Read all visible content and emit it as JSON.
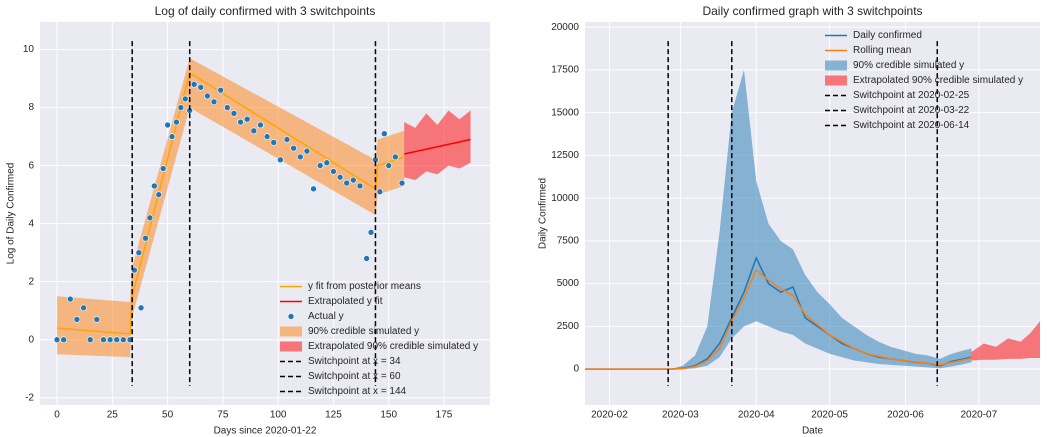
{
  "chart_data": [
    {
      "type": "line",
      "title": "Log of daily confirmed with 3 switchpoints",
      "xlabel": "Days since 2020-01-22",
      "ylabel": "Log of Daily Confirmed",
      "xlim": [
        -7.7,
        195.8
      ],
      "ylim": [
        -2.25,
        10.95
      ],
      "xticks": [
        0,
        25,
        50,
        75,
        100,
        125,
        150,
        175
      ],
      "yticks": [
        -2,
        0,
        2,
        4,
        6,
        8,
        10
      ],
      "grid": true,
      "legend": "lower right",
      "series": [
        {
          "name": "y fit from posterior means",
          "type": "line",
          "color": "orange",
          "x": [
            0,
            33,
            34,
            60,
            144,
            145,
            157
          ],
          "values": [
            0.4,
            0.2,
            1.5,
            9.2,
            5.2,
            6.0,
            6.3
          ]
        },
        {
          "name": "Extrapolated y fit",
          "type": "line",
          "color": "red",
          "x": [
            157,
            187
          ],
          "values": [
            6.4,
            6.9
          ]
        },
        {
          "name": "Actual y",
          "type": "scatter",
          "color": "#1f77b4",
          "x": [
            0,
            3,
            6,
            9,
            12,
            15,
            18,
            21,
            24,
            27,
            30,
            33,
            35,
            37,
            38,
            40,
            42,
            44,
            46,
            48,
            50,
            52,
            54,
            56,
            58,
            60,
            62,
            65,
            68,
            71,
            74,
            77,
            80,
            83,
            86,
            89,
            92,
            95,
            98,
            101,
            104,
            107,
            110,
            113,
            116,
            119,
            122,
            125,
            128,
            131,
            134,
            137,
            140,
            142,
            144,
            146,
            148,
            150,
            153,
            156
          ],
          "values": [
            0,
            0,
            1.4,
            0.7,
            1.1,
            0,
            0.7,
            0,
            0,
            0,
            0,
            0,
            2.4,
            3.0,
            1.1,
            3.5,
            4.2,
            5.3,
            5.0,
            5.9,
            7.4,
            7.0,
            7.5,
            8.0,
            8.3,
            7.9,
            8.8,
            8.7,
            8.4,
            8.2,
            8.6,
            8.0,
            7.8,
            7.5,
            7.6,
            7.2,
            7.4,
            7.0,
            6.8,
            6.2,
            6.9,
            6.6,
            6.3,
            6.5,
            5.2,
            6.0,
            6.1,
            5.8,
            5.6,
            5.4,
            5.5,
            5.3,
            2.8,
            3.7,
            6.2,
            5.1,
            7.1,
            6.0,
            6.3,
            5.4
          ]
        },
        {
          "name": "90% credible simulated y",
          "type": "band",
          "color": "#ff7f0e",
          "alpha": 0.5,
          "x": [
            0,
            33,
            34,
            60,
            144,
            145,
            157
          ],
          "lower": [
            -0.5,
            -0.6,
            0.8,
            8.0,
            4.3,
            5.0,
            5.3
          ],
          "upper": [
            1.5,
            1.3,
            2.5,
            9.7,
            6.2,
            6.9,
            7.2
          ]
        },
        {
          "name": "Extrapolated 90% credible simulated y",
          "type": "band",
          "color": "#ff0000",
          "alpha": 0.5,
          "x": [
            157,
            162,
            167,
            172,
            177,
            182,
            187
          ],
          "lower": [
            5.6,
            5.5,
            5.8,
            5.7,
            6.0,
            5.9,
            6.1
          ],
          "upper": [
            7.5,
            7.3,
            7.8,
            7.4,
            7.9,
            7.6,
            7.9
          ]
        }
      ],
      "switchpoints": [
        {
          "name": "Switchpoint at x = 34",
          "x": 34
        },
        {
          "name": "Switchpoint at x = 60",
          "x": 60
        },
        {
          "name": "Switchpoint at x = 144",
          "x": 144
        }
      ]
    },
    {
      "type": "line",
      "title": "Daily confirmed graph with 3 switchpoints",
      "xlabel": "Date",
      "ylabel": "Daily Confirmed",
      "xlim": [
        "2020-01-22",
        "2020-07-26"
      ],
      "ylim": [
        -2100,
        20300
      ],
      "xticks": [
        {
          "value": "2020-02-01",
          "label": "2020-02"
        },
        {
          "value": "2020-03-01",
          "label": "2020-03"
        },
        {
          "value": "2020-04-01",
          "label": "2020-04"
        },
        {
          "value": "2020-05-01",
          "label": "2020-05"
        },
        {
          "value": "2020-06-01",
          "label": "2020-06"
        },
        {
          "value": "2020-07-01",
          "label": "2020-07"
        }
      ],
      "yticks": [
        0,
        2500,
        5000,
        7500,
        10000,
        12500,
        15000,
        17500,
        20000
      ],
      "grid": true,
      "legend": "upper right",
      "series": [
        {
          "name": "Daily confirmed",
          "type": "line",
          "color": "#1f77b4",
          "x": [
            "2020-01-22",
            "2020-01-27",
            "2020-02-01",
            "2020-02-06",
            "2020-02-11",
            "2020-02-16",
            "2020-02-21",
            "2020-02-26",
            "2020-03-02",
            "2020-03-07",
            "2020-03-12",
            "2020-03-17",
            "2020-03-22",
            "2020-03-27",
            "2020-04-01",
            "2020-04-06",
            "2020-04-11",
            "2020-04-16",
            "2020-04-21",
            "2020-04-26",
            "2020-05-01",
            "2020-05-06",
            "2020-05-11",
            "2020-05-16",
            "2020-05-21",
            "2020-05-26",
            "2020-05-31",
            "2020-06-05",
            "2020-06-10",
            "2020-06-15",
            "2020-06-20",
            "2020-06-25",
            "2020-06-28"
          ],
          "values": [
            0,
            0,
            0,
            0,
            0,
            0,
            0,
            0,
            50,
            200,
            600,
            1500,
            3000,
            4500,
            6500,
            5000,
            4500,
            4800,
            3000,
            2500,
            2000,
            1500,
            1200,
            900,
            700,
            600,
            500,
            400,
            350,
            200,
            450,
            600,
            700
          ]
        },
        {
          "name": "Rolling mean",
          "type": "line",
          "color": "#ff7f0e",
          "x": [
            "2020-01-22",
            "2020-01-27",
            "2020-02-01",
            "2020-02-06",
            "2020-02-11",
            "2020-02-16",
            "2020-02-21",
            "2020-02-26",
            "2020-03-02",
            "2020-03-07",
            "2020-03-12",
            "2020-03-17",
            "2020-03-22",
            "2020-03-27",
            "2020-04-01",
            "2020-04-06",
            "2020-04-11",
            "2020-04-16",
            "2020-04-21",
            "2020-04-26",
            "2020-05-01",
            "2020-05-06",
            "2020-05-11",
            "2020-05-16",
            "2020-05-21",
            "2020-05-26",
            "2020-05-31",
            "2020-06-05",
            "2020-06-10",
            "2020-06-15",
            "2020-06-20",
            "2020-06-25",
            "2020-06-28"
          ],
          "values": [
            0,
            0,
            0,
            0,
            0,
            0,
            0,
            0,
            30,
            150,
            500,
            1200,
            2800,
            4200,
            5800,
            5200,
            4700,
            4300,
            3200,
            2600,
            2000,
            1600,
            1200,
            900,
            750,
            600,
            500,
            420,
            350,
            250,
            400,
            550,
            650
          ]
        },
        {
          "name": "90% credible simulated y",
          "type": "band",
          "color": "#1f77b4",
          "alpha": 0.5,
          "x": [
            "2020-01-22",
            "2020-01-27",
            "2020-02-01",
            "2020-02-06",
            "2020-02-11",
            "2020-02-16",
            "2020-02-21",
            "2020-02-26",
            "2020-03-02",
            "2020-03-07",
            "2020-03-12",
            "2020-03-17",
            "2020-03-22",
            "2020-03-27",
            "2020-04-01",
            "2020-04-06",
            "2020-04-11",
            "2020-04-16",
            "2020-04-21",
            "2020-04-26",
            "2020-05-01",
            "2020-05-06",
            "2020-05-11",
            "2020-05-16",
            "2020-05-21",
            "2020-05-26",
            "2020-05-31",
            "2020-06-05",
            "2020-06-10",
            "2020-06-15",
            "2020-06-20",
            "2020-06-25",
            "2020-06-28"
          ],
          "lower": [
            0,
            0,
            0,
            0,
            0,
            0,
            0,
            0,
            0,
            50,
            200,
            700,
            1800,
            2500,
            2800,
            2500,
            2200,
            2000,
            1500,
            1200,
            900,
            700,
            500,
            400,
            300,
            250,
            200,
            150,
            100,
            50,
            150,
            300,
            400
          ],
          "upper": [
            0,
            0,
            0,
            0,
            0,
            0,
            0,
            0,
            200,
            800,
            2500,
            8000,
            15000,
            17500,
            11000,
            8500,
            7500,
            7000,
            5500,
            4500,
            3800,
            3000,
            2500,
            2000,
            1600,
            1300,
            1100,
            900,
            800,
            600,
            900,
            1100,
            1200
          ]
        },
        {
          "name": "Extrapolated 90% credible simulated y",
          "type": "band",
          "color": "#ff0000",
          "alpha": 0.5,
          "x": [
            "2020-06-28",
            "2020-07-03",
            "2020-07-08",
            "2020-07-13",
            "2020-07-18",
            "2020-07-22",
            "2020-07-26"
          ],
          "lower": [
            500,
            550,
            550,
            600,
            600,
            650,
            650
          ],
          "upper": [
            1000,
            1500,
            1300,
            1800,
            1600,
            2100,
            2800
          ]
        }
      ],
      "switchpoints": [
        {
          "name": "Switchpoint at 2020-02-25",
          "x": "2020-02-25"
        },
        {
          "name": "Switchpoint at 2020-03-22",
          "x": "2020-03-22"
        },
        {
          "name": "Switchpoint at 2020-06-14",
          "x": "2020-06-14"
        }
      ]
    }
  ]
}
